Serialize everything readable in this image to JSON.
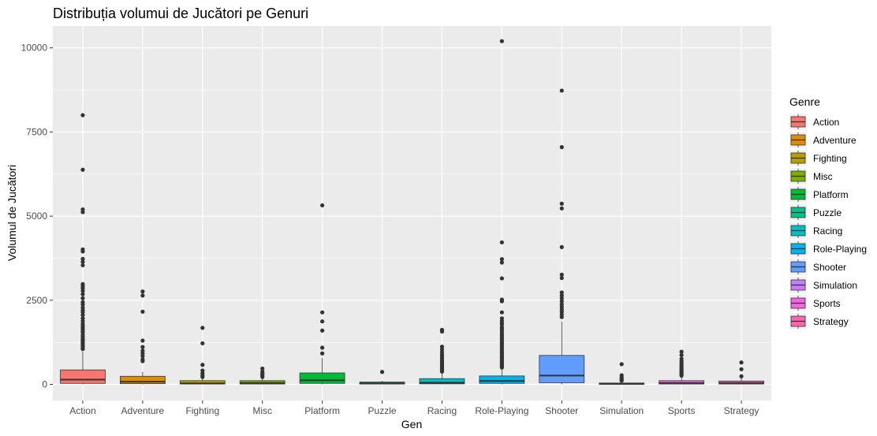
{
  "chart_data": {
    "type": "boxplot",
    "title": "Distribuția volumui de Jucători pe Genuri",
    "xlabel": "Gen",
    "ylabel": "Volumul de Jucători",
    "ylim": [
      -480,
      10650
    ],
    "yticks": [
      0,
      2500,
      5000,
      7500,
      10000
    ],
    "grid": true,
    "legend_title": "Genre",
    "legend_position": "right",
    "categories": [
      "Action",
      "Adventure",
      "Fighting",
      "Misc",
      "Platform",
      "Puzzle",
      "Racing",
      "Role-Playing",
      "Shooter",
      "Simulation",
      "Sports",
      "Strategy"
    ],
    "colors": [
      "#F8766D",
      "#DE8C00",
      "#B79F00",
      "#7CAE00",
      "#00BA38",
      "#00C08B",
      "#00BFC4",
      "#00B4F0",
      "#619CFF",
      "#C77CFF",
      "#F564E3",
      "#FF64B0"
    ],
    "boxes": [
      {
        "q1": 30,
        "median": 140,
        "q3": 430,
        "whisker_low": 0,
        "whisker_high": 980,
        "outliers": [
          8000,
          6380,
          5200,
          5120,
          4010,
          3950,
          3730,
          3640,
          3540,
          2980,
          2920,
          2860,
          2780,
          2680,
          2560,
          2440,
          2370,
          2280,
          2200,
          2140,
          2060,
          1960,
          1880,
          1800,
          1740,
          1690,
          1640,
          1580,
          1540,
          1470,
          1420,
          1360,
          1320,
          1280,
          1240,
          1200,
          1160,
          1120,
          1080,
          1050
        ]
      },
      {
        "q1": 20,
        "median": 80,
        "q3": 240,
        "whisker_low": 0,
        "whisker_high": 370,
        "outliers": [
          2760,
          2640,
          2160,
          1300,
          1110,
          1000,
          920,
          840,
          740,
          690
        ]
      },
      {
        "q1": 10,
        "median": 30,
        "q3": 110,
        "whisker_low": 0,
        "whisker_high": 190,
        "outliers": [
          1680,
          1220,
          580,
          410,
          330,
          270,
          220
        ]
      },
      {
        "q1": 10,
        "median": 40,
        "q3": 110,
        "whisker_low": 0,
        "whisker_high": 190,
        "outliers": [
          470,
          380,
          330,
          300,
          260,
          220
        ]
      },
      {
        "q1": 30,
        "median": 120,
        "q3": 340,
        "whisker_low": 0,
        "whisker_high": 780,
        "outliers": [
          5320,
          2140,
          1870,
          1600,
          1090,
          920
        ]
      },
      {
        "q1": 10,
        "median": 30,
        "q3": 70,
        "whisker_low": 0,
        "whisker_high": 110,
        "outliers": [
          370
        ]
      },
      {
        "q1": 15,
        "median": 50,
        "q3": 170,
        "whisker_low": 0,
        "whisker_high": 340,
        "outliers": [
          1620,
          1570,
          1120,
          1040,
          960,
          890,
          830,
          770,
          710,
          660,
          610,
          570,
          530,
          490,
          460,
          430,
          400,
          380
        ]
      },
      {
        "q1": 30,
        "median": 100,
        "q3": 250,
        "whisker_low": 0,
        "whisker_high": 470,
        "outliers": [
          10200,
          4220,
          3720,
          3620,
          3150,
          2520,
          2470,
          2140,
          1960,
          1890,
          1830,
          1780,
          1700,
          1650,
          1600,
          1540,
          1480,
          1440,
          1390,
          1340,
          1290,
          1240,
          1200,
          1150,
          1100,
          1060,
          1010,
          970,
          930,
          890,
          850,
          810,
          770,
          730,
          690,
          660,
          620,
          580,
          550,
          520,
          500
        ]
      },
      {
        "q1": 50,
        "median": 260,
        "q3": 860,
        "whisker_low": 0,
        "whisker_high": 1870,
        "outliers": [
          8730,
          7050,
          5370,
          5230,
          4080,
          3260,
          3160,
          2730,
          2640,
          2560,
          2470,
          2380,
          2300,
          2220,
          2160,
          2080,
          2000
        ]
      },
      {
        "q1": 5,
        "median": 15,
        "q3": 40,
        "whisker_low": 0,
        "whisker_high": 70,
        "outliers": [
          600,
          270,
          210,
          170,
          140,
          110
        ]
      },
      {
        "q1": 10,
        "median": 40,
        "q3": 110,
        "whisker_low": 0,
        "whisker_high": 230,
        "outliers": [
          970,
          870,
          760,
          690,
          630,
          580,
          530,
          490,
          450,
          410,
          380,
          350,
          320,
          290,
          260
        ]
      },
      {
        "q1": 10,
        "median": 40,
        "q3": 100,
        "whisker_low": 0,
        "whisker_high": 200,
        "outliers": [
          650,
          450,
          240
        ]
      }
    ]
  }
}
